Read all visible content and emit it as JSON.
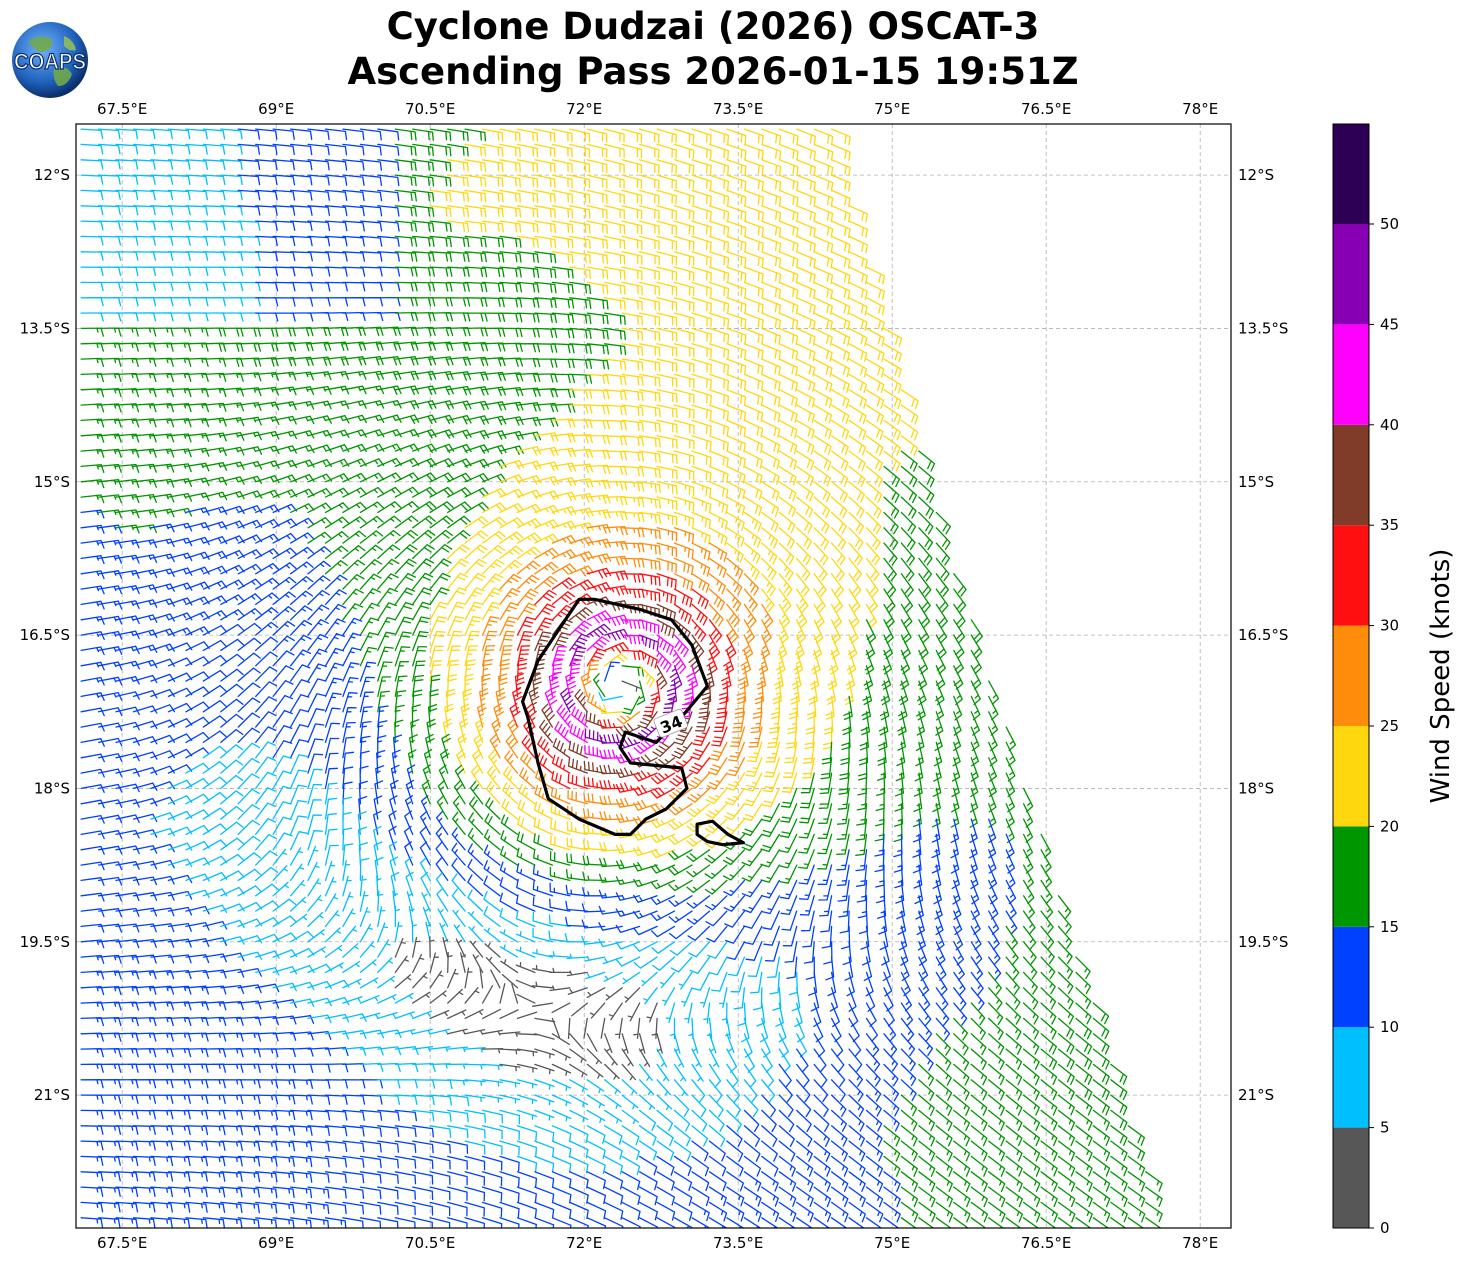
{
  "title": {
    "line1": "Cyclone Dudzai (2026) OSCAT-3",
    "line2": "Ascending Pass 2026-01-15 19:51Z"
  },
  "logo": {
    "text": "COAPS",
    "icon": "globe-logo-icon"
  },
  "map": {
    "lon_range": [
      67.05,
      78.3
    ],
    "lat_range": [
      -22.3,
      -11.5
    ],
    "lon_ticks": [
      "67.5°E",
      "69°E",
      "70.5°E",
      "72°E",
      "73.5°E",
      "75°E",
      "76.5°E",
      "78°E"
    ],
    "lon_tick_values": [
      67.5,
      69,
      70.5,
      72,
      73.5,
      75,
      76.5,
      78
    ],
    "lat_ticks": [
      "12°S",
      "13.5°S",
      "15°S",
      "16.5°S",
      "18°S",
      "19.5°S",
      "21°S"
    ],
    "lat_tick_values": [
      -12,
      -13.5,
      -15,
      -16.5,
      -18,
      -19.5,
      -21
    ],
    "gridlines": true,
    "cyclone_center": {
      "lon": 72.35,
      "lat": -17.0
    },
    "contour_label": "34",
    "contour_34kt": [
      [
        71.95,
        -16.15
      ],
      [
        72.1,
        -16.15
      ],
      [
        72.55,
        -16.25
      ],
      [
        72.85,
        -16.35
      ],
      [
        73.05,
        -16.6
      ],
      [
        73.2,
        -17.0
      ],
      [
        72.95,
        -17.3
      ],
      [
        72.7,
        -17.55
      ],
      [
        72.4,
        -17.45
      ],
      [
        72.35,
        -17.6
      ],
      [
        72.45,
        -17.75
      ],
      [
        72.95,
        -17.8
      ],
      [
        73.0,
        -18.0
      ],
      [
        72.8,
        -18.2
      ],
      [
        72.6,
        -18.3
      ],
      [
        72.45,
        -18.45
      ],
      [
        72.3,
        -18.45
      ],
      [
        71.95,
        -18.3
      ],
      [
        71.65,
        -18.1
      ],
      [
        71.55,
        -17.75
      ],
      [
        71.45,
        -17.3
      ],
      [
        71.4,
        -17.15
      ],
      [
        71.55,
        -16.75
      ],
      [
        71.75,
        -16.45
      ],
      [
        71.95,
        -16.15
      ]
    ],
    "contour_34kt_small": [
      [
        73.1,
        -18.35
      ],
      [
        73.25,
        -18.32
      ],
      [
        73.4,
        -18.45
      ],
      [
        73.55,
        -18.53
      ],
      [
        73.35,
        -18.55
      ],
      [
        73.2,
        -18.52
      ],
      [
        73.1,
        -18.45
      ],
      [
        73.1,
        -18.35
      ]
    ]
  },
  "colorbar": {
    "label": "Wind Speed (knots)",
    "tick_labels": [
      "0",
      "5",
      "10",
      "15",
      "20",
      "25",
      "30",
      "35",
      "40",
      "45",
      "50"
    ],
    "bins": [
      0,
      5,
      10,
      15,
      20,
      25,
      30,
      35,
      40,
      45,
      50,
      55
    ],
    "colors": [
      "#575757",
      "#00bfff",
      "#0040ff",
      "#009600",
      "#ffd70f",
      "#ff8c0a",
      "#ff0f0f",
      "#803c28",
      "#ff00ff",
      "#8800b4",
      "#2d0055"
    ],
    "extend_max": true
  }
}
